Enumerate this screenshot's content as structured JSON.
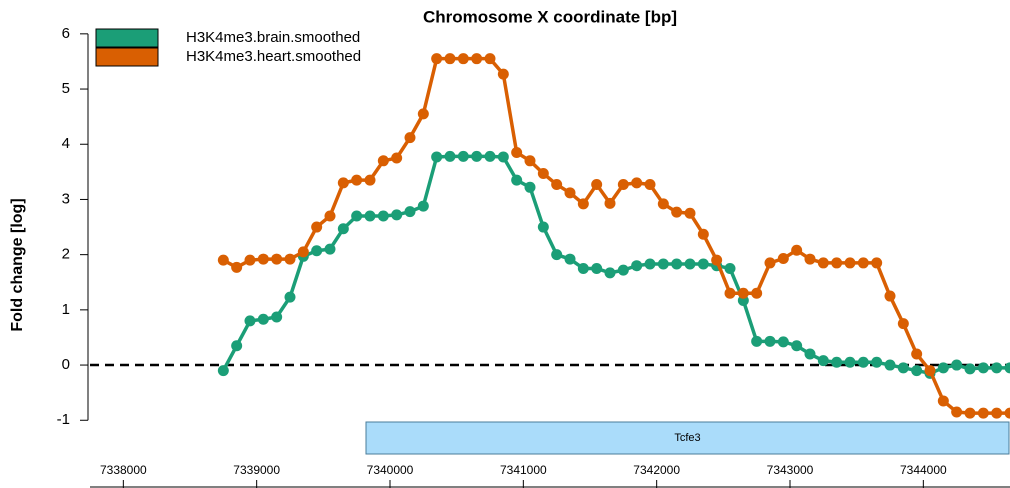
{
  "chart_data": {
    "type": "line",
    "title": "Chromosome X coordinate [bp]",
    "y_label": "Fold change [log]",
    "x": [
      7338750,
      7338850,
      7338950,
      7339050,
      7339150,
      7339250,
      7339350,
      7339450,
      7339550,
      7339650,
      7339750,
      7339850,
      7339950,
      7340050,
      7340150,
      7340250,
      7340350,
      7340450,
      7340550,
      7340650,
      7340750,
      7340850,
      7340950,
      7341050,
      7341150,
      7341250,
      7341350,
      7341450,
      7341550,
      7341650,
      7341750,
      7341850,
      7341950,
      7342050,
      7342150,
      7342250,
      7342350,
      7342450,
      7342550,
      7342650,
      7342750,
      7342850,
      7342950,
      7343050,
      7343150,
      7343250,
      7343350,
      7343450,
      7343550,
      7343650,
      7343750,
      7343850,
      7343950,
      7344050,
      7344150,
      7344250,
      7344350,
      7344450,
      7344550,
      7344650
    ],
    "series": [
      {
        "name": "H3K4me3.brain.smoothed",
        "color": "#1b9e77",
        "values": [
          -0.1,
          0.35,
          0.8,
          0.83,
          0.87,
          1.23,
          1.97,
          2.07,
          2.1,
          2.47,
          2.7,
          2.7,
          2.7,
          2.72,
          2.78,
          2.88,
          3.77,
          3.78,
          3.78,
          3.78,
          3.78,
          3.77,
          3.35,
          3.22,
          2.5,
          2.0,
          1.92,
          1.75,
          1.75,
          1.67,
          1.72,
          1.8,
          1.83,
          1.83,
          1.83,
          1.83,
          1.83,
          1.8,
          1.75,
          1.17,
          0.43,
          0.43,
          0.42,
          0.35,
          0.2,
          0.08,
          0.05,
          0.05,
          0.05,
          0.05,
          0.0,
          -0.05,
          -0.1,
          -0.15,
          -0.05,
          0.0,
          -0.07,
          -0.05,
          -0.05,
          -0.05
        ]
      },
      {
        "name": "H3K4me3.heart.smoothed",
        "color": "#d95f02",
        "values": [
          1.9,
          1.77,
          1.9,
          1.92,
          1.92,
          1.92,
          2.05,
          2.5,
          2.7,
          3.3,
          3.35,
          3.35,
          3.7,
          3.75,
          4.12,
          4.55,
          5.55,
          5.55,
          5.55,
          5.55,
          5.55,
          5.27,
          3.85,
          3.7,
          3.47,
          3.27,
          3.12,
          2.92,
          3.27,
          2.93,
          3.27,
          3.3,
          3.27,
          2.92,
          2.77,
          2.75,
          2.37,
          1.9,
          1.3,
          1.3,
          1.3,
          1.85,
          1.93,
          2.08,
          1.92,
          1.85,
          1.85,
          1.85,
          1.85,
          1.85,
          1.25,
          0.75,
          0.2,
          -0.1,
          -0.65,
          -0.85,
          -0.87,
          -0.87,
          -0.87,
          -0.87
        ]
      }
    ],
    "xlim": [
      7337750,
      7344650
    ],
    "xticks": [
      7338000,
      7339000,
      7340000,
      7341000,
      7342000,
      7343000,
      7344000
    ],
    "ylim": [
      -1.2,
      6.2
    ],
    "yticks": [
      -1,
      0,
      1,
      2,
      3,
      4,
      5,
      6
    ],
    "hline": 0,
    "legend": "top-left",
    "genes": [
      {
        "name": "Tcfe3",
        "start": 7339820,
        "end": 7344650
      }
    ]
  }
}
